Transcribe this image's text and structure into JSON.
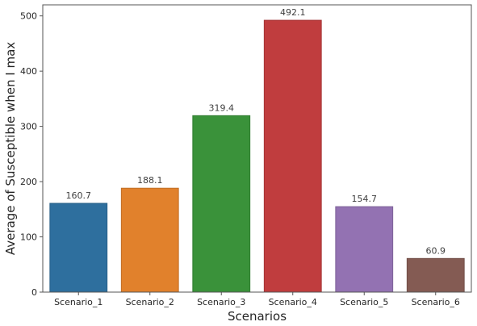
{
  "chart_data": {
    "type": "bar",
    "title": "",
    "xlabel": "Scenarios",
    "ylabel": "Average of Susceptible when I max",
    "categories": [
      "Scenario_1",
      "Scenario_2",
      "Scenario_3",
      "Scenario_4",
      "Scenario_5",
      "Scenario_6"
    ],
    "values": [
      160.7,
      188.1,
      319.4,
      492.1,
      154.7,
      60.9
    ],
    "value_labels": [
      "160.7",
      "188.1",
      "319.4",
      "492.1",
      "154.7",
      "60.9"
    ],
    "colors": [
      "#2e6f9e",
      "#e1812c",
      "#3a923a",
      "#c03d3e",
      "#9372b2",
      "#845b53"
    ],
    "edge_colors": [
      "#275f87",
      "#c06e25",
      "#317d31",
      "#a43435",
      "#7d6198",
      "#714e47"
    ],
    "ylim": [
      0,
      520
    ],
    "yticks": [
      0,
      100,
      200,
      300,
      400,
      500
    ],
    "ytick_labels": [
      "0",
      "100",
      "200",
      "300",
      "400",
      "500"
    ],
    "grid": false
  }
}
